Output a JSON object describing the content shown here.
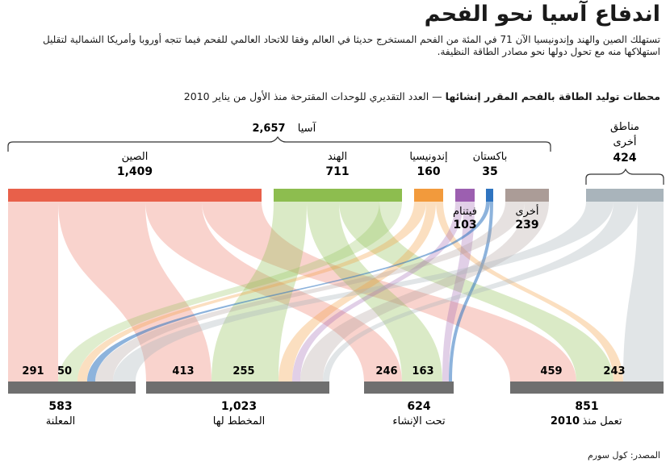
{
  "title": "اندفاع آسيا نحو الفحم",
  "subtitle": "تستهلك الصين والهند وإندونيسيا الآن 71 في المئة من الفحم المستخرج حديثا في العالم وفقا للاتحاد العالمي للفحم فيما تتجه  أوروبا وأمريكا الشمالية لتقليل استهلاكها منه مع تحول دولها نحو  مصادر الطاقة النظيفة.",
  "chart_heading": {
    "bold": "محطات توليد الطاقة بالفحم المقرر إنشائها",
    "rest": " — العدد التقديري للوحدات المقترحة منذ الأول من يناير 2010"
  },
  "groups": {
    "asia": {
      "label": "آسيا",
      "value": "2,657"
    },
    "other_regions": {
      "label_line1": "مناطق",
      "label_line2": "أخرى",
      "value": "424"
    }
  },
  "countries": [
    {
      "key": "china",
      "label": "الصين",
      "value": "1,409",
      "color": "#e8604a"
    },
    {
      "key": "india",
      "label": "الهند",
      "value": "711",
      "color": "#8dbd4f"
    },
    {
      "key": "indonesia",
      "label": "إندونيسيا",
      "value": "160",
      "color": "#f29a3c"
    },
    {
      "key": "vietnam",
      "label": "فيتنام",
      "value": "103",
      "color": "#9c5fb0"
    },
    {
      "key": "pakistan",
      "label": "باكستان",
      "value": "35",
      "color": "#2f74c0"
    },
    {
      "key": "asia_other",
      "label": "أخرى",
      "value": "239",
      "color": "#ab9c97"
    },
    {
      "key": "other_regions",
      "label": "",
      "value": "424",
      "color": "#a9b4bb"
    }
  ],
  "statuses": [
    {
      "key": "announced",
      "label": "المعلنة",
      "total": "583",
      "asia": "50",
      "china": "291"
    },
    {
      "key": "planned",
      "label": "المخطط لها",
      "total": "1,023",
      "china": "413",
      "india": "255"
    },
    {
      "key": "construction",
      "label": "تحت الإنشاء",
      "total": "624",
      "china": "246",
      "india": "163"
    },
    {
      "key": "operating",
      "label_line1": "تعمل منذ",
      "label_line2": "2010",
      "total": "851",
      "china": "459",
      "other": "243"
    }
  ],
  "source": {
    "label": "المصدر:",
    "value": "كول سورم"
  },
  "colors": {
    "status_bar": "#6f6f6f",
    "text": "#1a1a1a"
  }
}
